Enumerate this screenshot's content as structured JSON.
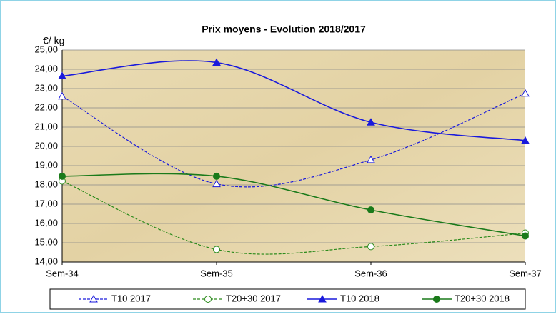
{
  "chart_data": {
    "type": "line",
    "title": "Prix moyens - Evolution 2018/2017",
    "ylabel": "€/ kg",
    "categories": [
      "Sem-34",
      "Sem-35",
      "Sem-36",
      "Sem-37"
    ],
    "series": [
      {
        "name": "T10 2017",
        "color": "#1a1adc",
        "dash": true,
        "marker": "triangle",
        "filled": false,
        "values": [
          22.6,
          18.05,
          19.3,
          22.75
        ]
      },
      {
        "name": "T20+30 2017",
        "color": "#2a8a1a",
        "dash": true,
        "marker": "circle",
        "filled": false,
        "values": [
          18.2,
          14.65,
          14.8,
          15.5
        ]
      },
      {
        "name": "T10 2018",
        "color": "#1a1adc",
        "dash": false,
        "marker": "triangle",
        "filled": true,
        "values": [
          23.65,
          24.35,
          21.25,
          20.3
        ]
      },
      {
        "name": "T20+30 2018",
        "color": "#1a7a1a",
        "dash": false,
        "marker": "circle",
        "filled": true,
        "values": [
          18.45,
          18.45,
          16.7,
          15.35
        ]
      }
    ],
    "ylim": [
      14,
      25
    ],
    "yticks": [
      {
        "value": 14,
        "label": "14,00"
      },
      {
        "value": 15,
        "label": "15,00"
      },
      {
        "value": 16,
        "label": "16,00"
      },
      {
        "value": 17,
        "label": "17,00"
      },
      {
        "value": 18,
        "label": "18,00"
      },
      {
        "value": 19,
        "label": "19,00"
      },
      {
        "value": 20,
        "label": "20,00"
      },
      {
        "value": 21,
        "label": "21,00"
      },
      {
        "value": 22,
        "label": "22,00"
      },
      {
        "value": 23,
        "label": "23,00"
      },
      {
        "value": 24,
        "label": "24,00"
      },
      {
        "value": 25,
        "label": "25,00"
      }
    ],
    "grid": true,
    "legend": "bottom",
    "smooth": true
  }
}
